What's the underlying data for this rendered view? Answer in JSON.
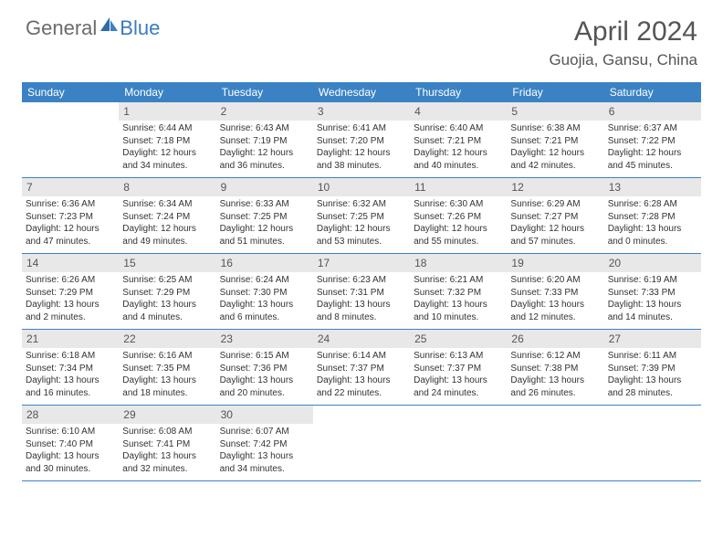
{
  "logo": {
    "general": "General",
    "blue": "Blue"
  },
  "title": "April 2024",
  "location": "Guojia, Gansu, China",
  "colors": {
    "header_bg": "#3b82c4",
    "header_text": "#ffffff",
    "day_num_bg": "#e8e8e8",
    "text": "#333333",
    "border": "#3b82c4",
    "logo_gray": "#6b6b6b",
    "logo_blue": "#3b7bbf"
  },
  "day_names": [
    "Sunday",
    "Monday",
    "Tuesday",
    "Wednesday",
    "Thursday",
    "Friday",
    "Saturday"
  ],
  "weeks": [
    [
      {
        "num": "",
        "sunrise": "",
        "sunset": "",
        "daylight": ""
      },
      {
        "num": "1",
        "sunrise": "Sunrise: 6:44 AM",
        "sunset": "Sunset: 7:18 PM",
        "daylight": "Daylight: 12 hours and 34 minutes."
      },
      {
        "num": "2",
        "sunrise": "Sunrise: 6:43 AM",
        "sunset": "Sunset: 7:19 PM",
        "daylight": "Daylight: 12 hours and 36 minutes."
      },
      {
        "num": "3",
        "sunrise": "Sunrise: 6:41 AM",
        "sunset": "Sunset: 7:20 PM",
        "daylight": "Daylight: 12 hours and 38 minutes."
      },
      {
        "num": "4",
        "sunrise": "Sunrise: 6:40 AM",
        "sunset": "Sunset: 7:21 PM",
        "daylight": "Daylight: 12 hours and 40 minutes."
      },
      {
        "num": "5",
        "sunrise": "Sunrise: 6:38 AM",
        "sunset": "Sunset: 7:21 PM",
        "daylight": "Daylight: 12 hours and 42 minutes."
      },
      {
        "num": "6",
        "sunrise": "Sunrise: 6:37 AM",
        "sunset": "Sunset: 7:22 PM",
        "daylight": "Daylight: 12 hours and 45 minutes."
      }
    ],
    [
      {
        "num": "7",
        "sunrise": "Sunrise: 6:36 AM",
        "sunset": "Sunset: 7:23 PM",
        "daylight": "Daylight: 12 hours and 47 minutes."
      },
      {
        "num": "8",
        "sunrise": "Sunrise: 6:34 AM",
        "sunset": "Sunset: 7:24 PM",
        "daylight": "Daylight: 12 hours and 49 minutes."
      },
      {
        "num": "9",
        "sunrise": "Sunrise: 6:33 AM",
        "sunset": "Sunset: 7:25 PM",
        "daylight": "Daylight: 12 hours and 51 minutes."
      },
      {
        "num": "10",
        "sunrise": "Sunrise: 6:32 AM",
        "sunset": "Sunset: 7:25 PM",
        "daylight": "Daylight: 12 hours and 53 minutes."
      },
      {
        "num": "11",
        "sunrise": "Sunrise: 6:30 AM",
        "sunset": "Sunset: 7:26 PM",
        "daylight": "Daylight: 12 hours and 55 minutes."
      },
      {
        "num": "12",
        "sunrise": "Sunrise: 6:29 AM",
        "sunset": "Sunset: 7:27 PM",
        "daylight": "Daylight: 12 hours and 57 minutes."
      },
      {
        "num": "13",
        "sunrise": "Sunrise: 6:28 AM",
        "sunset": "Sunset: 7:28 PM",
        "daylight": "Daylight: 13 hours and 0 minutes."
      }
    ],
    [
      {
        "num": "14",
        "sunrise": "Sunrise: 6:26 AM",
        "sunset": "Sunset: 7:29 PM",
        "daylight": "Daylight: 13 hours and 2 minutes."
      },
      {
        "num": "15",
        "sunrise": "Sunrise: 6:25 AM",
        "sunset": "Sunset: 7:29 PM",
        "daylight": "Daylight: 13 hours and 4 minutes."
      },
      {
        "num": "16",
        "sunrise": "Sunrise: 6:24 AM",
        "sunset": "Sunset: 7:30 PM",
        "daylight": "Daylight: 13 hours and 6 minutes."
      },
      {
        "num": "17",
        "sunrise": "Sunrise: 6:23 AM",
        "sunset": "Sunset: 7:31 PM",
        "daylight": "Daylight: 13 hours and 8 minutes."
      },
      {
        "num": "18",
        "sunrise": "Sunrise: 6:21 AM",
        "sunset": "Sunset: 7:32 PM",
        "daylight": "Daylight: 13 hours and 10 minutes."
      },
      {
        "num": "19",
        "sunrise": "Sunrise: 6:20 AM",
        "sunset": "Sunset: 7:33 PM",
        "daylight": "Daylight: 13 hours and 12 minutes."
      },
      {
        "num": "20",
        "sunrise": "Sunrise: 6:19 AM",
        "sunset": "Sunset: 7:33 PM",
        "daylight": "Daylight: 13 hours and 14 minutes."
      }
    ],
    [
      {
        "num": "21",
        "sunrise": "Sunrise: 6:18 AM",
        "sunset": "Sunset: 7:34 PM",
        "daylight": "Daylight: 13 hours and 16 minutes."
      },
      {
        "num": "22",
        "sunrise": "Sunrise: 6:16 AM",
        "sunset": "Sunset: 7:35 PM",
        "daylight": "Daylight: 13 hours and 18 minutes."
      },
      {
        "num": "23",
        "sunrise": "Sunrise: 6:15 AM",
        "sunset": "Sunset: 7:36 PM",
        "daylight": "Daylight: 13 hours and 20 minutes."
      },
      {
        "num": "24",
        "sunrise": "Sunrise: 6:14 AM",
        "sunset": "Sunset: 7:37 PM",
        "daylight": "Daylight: 13 hours and 22 minutes."
      },
      {
        "num": "25",
        "sunrise": "Sunrise: 6:13 AM",
        "sunset": "Sunset: 7:37 PM",
        "daylight": "Daylight: 13 hours and 24 minutes."
      },
      {
        "num": "26",
        "sunrise": "Sunrise: 6:12 AM",
        "sunset": "Sunset: 7:38 PM",
        "daylight": "Daylight: 13 hours and 26 minutes."
      },
      {
        "num": "27",
        "sunrise": "Sunrise: 6:11 AM",
        "sunset": "Sunset: 7:39 PM",
        "daylight": "Daylight: 13 hours and 28 minutes."
      }
    ],
    [
      {
        "num": "28",
        "sunrise": "Sunrise: 6:10 AM",
        "sunset": "Sunset: 7:40 PM",
        "daylight": "Daylight: 13 hours and 30 minutes."
      },
      {
        "num": "29",
        "sunrise": "Sunrise: 6:08 AM",
        "sunset": "Sunset: 7:41 PM",
        "daylight": "Daylight: 13 hours and 32 minutes."
      },
      {
        "num": "30",
        "sunrise": "Sunrise: 6:07 AM",
        "sunset": "Sunset: 7:42 PM",
        "daylight": "Daylight: 13 hours and 34 minutes."
      },
      {
        "num": "",
        "sunrise": "",
        "sunset": "",
        "daylight": ""
      },
      {
        "num": "",
        "sunrise": "",
        "sunset": "",
        "daylight": ""
      },
      {
        "num": "",
        "sunrise": "",
        "sunset": "",
        "daylight": ""
      },
      {
        "num": "",
        "sunrise": "",
        "sunset": "",
        "daylight": ""
      }
    ]
  ]
}
